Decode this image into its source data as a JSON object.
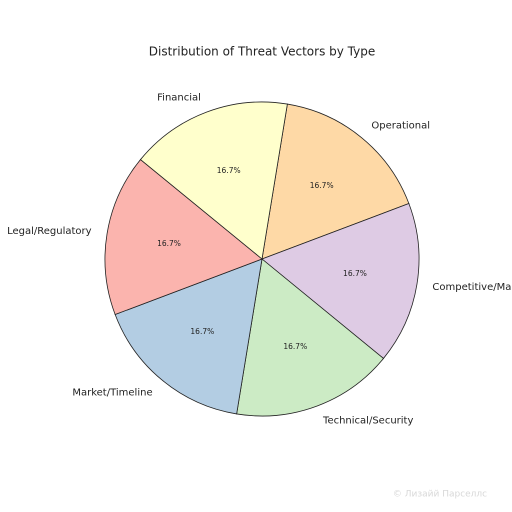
{
  "chart_data": {
    "type": "pie",
    "title": "Distribution of Threat Vectors by Type",
    "categories": [
      "Operational",
      "Competitive/Ma",
      "Technical/Security",
      "Market/Timeline",
      "Legal/Regulatory",
      "Financial"
    ],
    "values": [
      16.7,
      16.7,
      16.7,
      16.7,
      16.7,
      16.7
    ],
    "value_labels": [
      "16.7%",
      "16.7%",
      "16.7%",
      "16.7%",
      "16.7%",
      "16.7%"
    ],
    "colors": [
      "#fed9a6",
      "#decbe4",
      "#ccebc5",
      "#b3cde3",
      "#fbb4ae",
      "#ffffcc"
    ]
  },
  "watermark": "© Лизайй Парселлс"
}
